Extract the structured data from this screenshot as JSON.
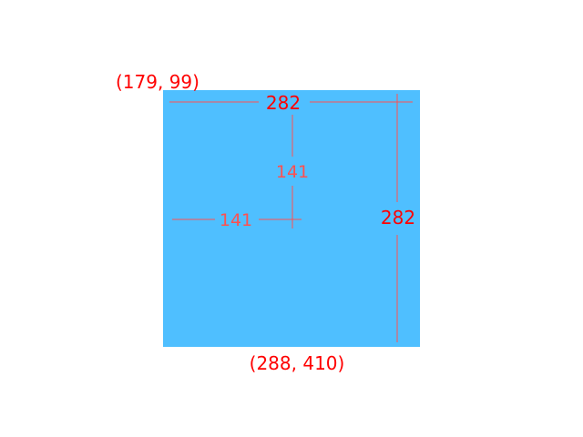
{
  "colors": {
    "square_fill": "#4fbfff",
    "annotation": "#ff0000",
    "annotation_light": "#ff5050",
    "background": "#ffffff"
  },
  "labels": {
    "top_left_coord": "(179, 99)",
    "bottom_coord": "(288, 410)",
    "width_label": "282",
    "height_label": "282",
    "inner_vertical_label": "141",
    "inner_horizontal_label": "141"
  }
}
